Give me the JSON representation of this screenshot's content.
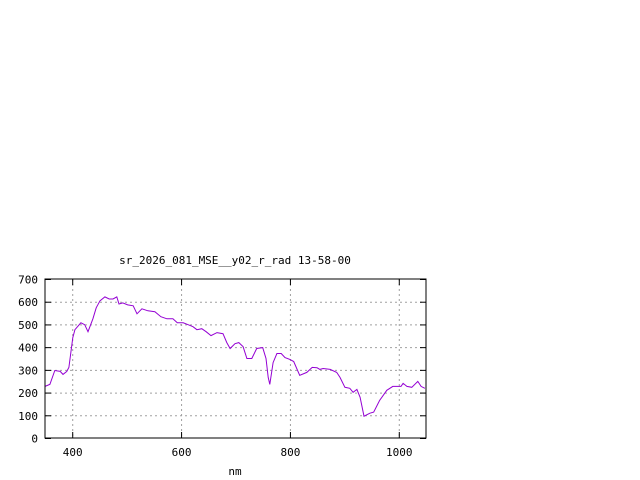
{
  "chart_data": {
    "type": "line",
    "title": "sr_2026_081_MSE__y02_r_rad 13-58-00",
    "xlabel": "nm",
    "ylabel": "",
    "xlim": [
      350,
      1050
    ],
    "ylim": [
      0,
      700
    ],
    "xticks": [
      400,
      600,
      800,
      1000
    ],
    "yticks": [
      0,
      100,
      200,
      300,
      400,
      500,
      600,
      700
    ],
    "grid": true,
    "line_color": "#9400d3",
    "series": [
      {
        "x": [
          350,
          359,
          368,
          378,
          383,
          390,
          394,
          401,
          405,
          416,
          423,
          429,
          438,
          444,
          451,
          460,
          468,
          475,
          482,
          486,
          493,
          502,
          512,
          519,
          528,
          539,
          552,
          563,
          574,
          585,
          593,
          604,
          613,
          622,
          629,
          638,
          646,
          655,
          666,
          677,
          684,
          690,
          699,
          706,
          714,
          721,
          730,
          739,
          750,
          756,
          760,
          763,
          769,
          776,
          784,
          791,
          800,
          807,
          818,
          831,
          841,
          850,
          855,
          861,
          874,
          886,
          892,
          901,
          910,
          916,
          923,
          929,
          936,
          947,
          954,
          965,
          978,
          989,
          1004,
          1008,
          1015,
          1024,
          1035,
          1041,
          1048
        ],
        "y": [
          227,
          236,
          297,
          293,
          280,
          293,
          311,
          442,
          477,
          507,
          499,
          468,
          525,
          573,
          604,
          621,
          612,
          612,
          621,
          590,
          595,
          586,
          582,
          547,
          569,
          560,
          556,
          534,
          525,
          525,
          507,
          507,
          499,
          490,
          477,
          481,
          468,
          451,
          464,
          459,
          420,
          394,
          415,
          420,
          402,
          350,
          350,
          394,
          398,
          350,
          267,
          236,
          332,
          372,
          372,
          354,
          346,
          337,
          276,
          289,
          311,
          309,
          302,
          306,
          302,
          289,
          267,
          223,
          219,
          201,
          214,
          179,
          96,
          109,
          114,
          166,
          210,
          227,
          227,
          241,
          227,
          223,
          249,
          227,
          219
        ]
      }
    ]
  }
}
